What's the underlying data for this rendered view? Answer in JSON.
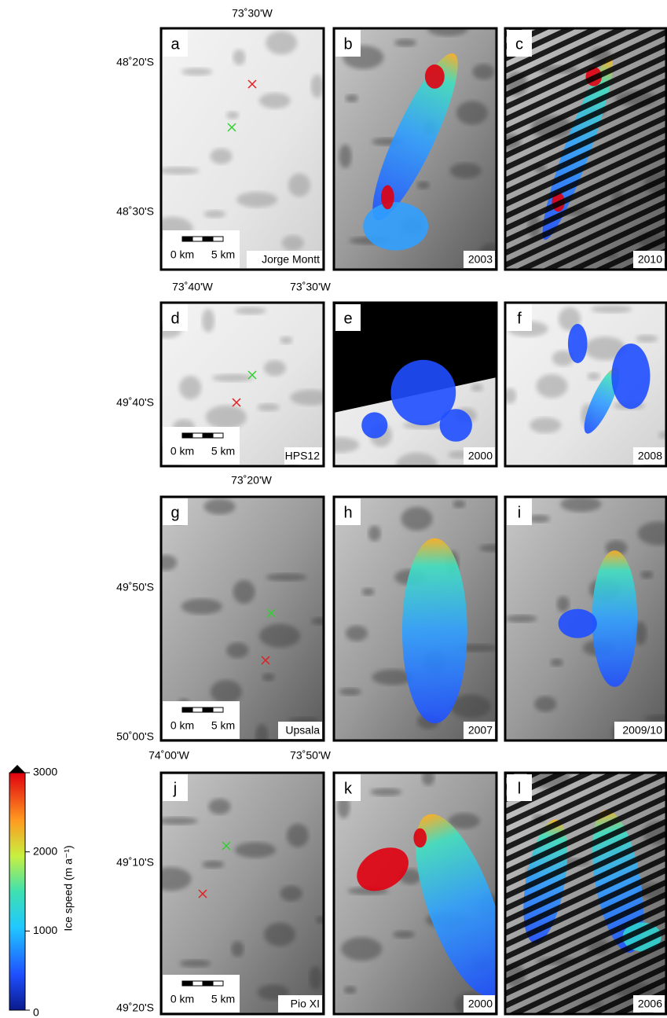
{
  "panels": [
    {
      "letter": "a",
      "caption": "Jorge Montt",
      "scale": [
        "0 km",
        "5 km"
      ]
    },
    {
      "letter": "b",
      "caption": "2003"
    },
    {
      "letter": "c",
      "caption": "2010"
    },
    {
      "letter": "d",
      "caption": "HPS12",
      "scale": [
        "0 km",
        "5 km"
      ]
    },
    {
      "letter": "e",
      "caption": "2000"
    },
    {
      "letter": "f",
      "caption": "2008"
    },
    {
      "letter": "g",
      "caption": "Upsala",
      "scale": [
        "0 km",
        "5 km"
      ]
    },
    {
      "letter": "h",
      "caption": "2007"
    },
    {
      "letter": "i",
      "caption": "2009/10"
    },
    {
      "letter": "j",
      "caption": "Pio XI",
      "scale": [
        "0 km",
        "5 km"
      ]
    },
    {
      "letter": "k",
      "caption": "2000"
    },
    {
      "letter": "l",
      "caption": "2006"
    }
  ],
  "lon_labels": [
    [
      "73˚30'W"
    ],
    [
      "73˚40'W",
      "73˚30'W"
    ],
    [
      "73˚20'W"
    ],
    [
      "74˚00'W",
      "73˚50'W"
    ]
  ],
  "lat_labels": [
    [
      "48˚20'S",
      "48˚30'S"
    ],
    [
      "49˚40'S"
    ],
    [
      "49˚50'S",
      "50˚00'S"
    ],
    [
      "49˚10'S",
      "49˚20'S"
    ]
  ],
  "colorbar": {
    "label": "Ice speed (m a⁻¹)",
    "ylim": [
      0,
      3000
    ],
    "ticks": [
      0,
      1000,
      2000,
      3000
    ]
  }
}
